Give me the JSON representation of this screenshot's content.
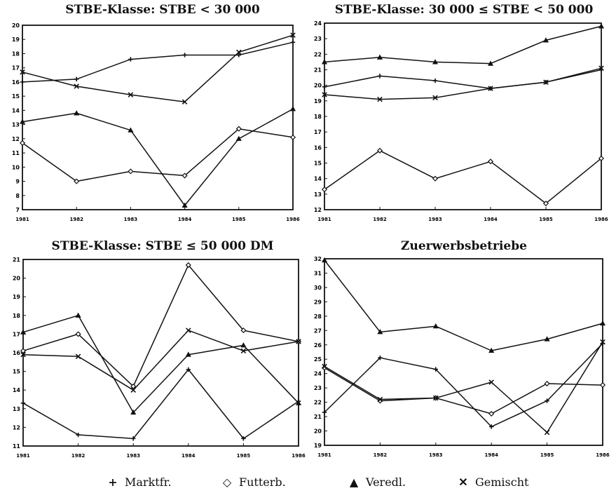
{
  "legend": {
    "marktfr": "Marktfr.",
    "futterb": "Futterb.",
    "veredl": "Veredl.",
    "gemischt": "Gemischt"
  },
  "chart_data": [
    {
      "type": "line",
      "title": "STBE-Klasse: STBE < 30 000",
      "x": [
        "1981",
        "1982",
        "1983",
        "1984",
        "1985",
        "1986"
      ],
      "ylim": [
        7,
        20
      ],
      "yticks": [
        7,
        8,
        9,
        10,
        11,
        12,
        13,
        14,
        15,
        16,
        17,
        18,
        19,
        20
      ],
      "series": [
        {
          "name": "Marktfr.",
          "values": [
            16.0,
            16.2,
            17.6,
            17.9,
            17.9,
            18.8
          ]
        },
        {
          "name": "Futterb.",
          "values": [
            11.7,
            9.0,
            9.7,
            9.4,
            12.7,
            12.1
          ]
        },
        {
          "name": "Veredl.",
          "values": [
            13.2,
            13.8,
            12.6,
            7.3,
            12.0,
            14.1
          ]
        },
        {
          "name": "Gemischt",
          "values": [
            16.7,
            15.7,
            15.1,
            14.6,
            18.1,
            19.3
          ]
        }
      ]
    },
    {
      "type": "line",
      "title": "STBE-Klasse: 30 000 ≤ STBE < 50 000",
      "x": [
        "1981",
        "1982",
        "1983",
        "1984",
        "1985",
        "1986"
      ],
      "ylim": [
        12,
        24
      ],
      "yticks": [
        12,
        13,
        14,
        15,
        16,
        17,
        18,
        19,
        20,
        21,
        22,
        23,
        24
      ],
      "series": [
        {
          "name": "Marktfr.",
          "values": [
            19.9,
            20.6,
            20.3,
            19.8,
            20.2,
            21.0
          ]
        },
        {
          "name": "Futterb.",
          "values": [
            13.3,
            15.8,
            14.0,
            15.1,
            12.4,
            15.3
          ]
        },
        {
          "name": "Veredl.",
          "values": [
            21.5,
            21.8,
            21.5,
            21.4,
            22.9,
            23.8
          ]
        },
        {
          "name": "Gemischt",
          "values": [
            19.4,
            19.1,
            19.2,
            19.8,
            20.2,
            21.1
          ]
        }
      ]
    },
    {
      "type": "line",
      "title": "STBE-Klasse: STBE ≤ 50 000 DM",
      "x": [
        "1981",
        "1982",
        "1983",
        "1984",
        "1985",
        "1986"
      ],
      "ylim": [
        11,
        21
      ],
      "yticks": [
        11,
        12,
        13,
        14,
        15,
        16,
        17,
        18,
        19,
        20,
        21
      ],
      "series": [
        {
          "name": "Marktfr.",
          "values": [
            13.3,
            11.6,
            11.4,
            15.1,
            11.4,
            13.4
          ]
        },
        {
          "name": "Futterb.",
          "values": [
            16.1,
            17.0,
            14.2,
            20.7,
            17.2,
            16.6
          ]
        },
        {
          "name": "Veredl.",
          "values": [
            17.1,
            18.0,
            12.8,
            15.9,
            16.4,
            13.3
          ]
        },
        {
          "name": "Gemischt",
          "values": [
            15.9,
            15.8,
            14.0,
            17.2,
            16.1,
            16.6
          ]
        }
      ]
    },
    {
      "type": "line",
      "title": "Zuerwerbsbetriebe",
      "x": [
        "1981",
        "1982",
        "1983",
        "1984",
        "1985",
        "1986"
      ],
      "ylim": [
        19,
        32
      ],
      "yticks": [
        19,
        20,
        21,
        22,
        23,
        24,
        25,
        26,
        27,
        28,
        29,
        30,
        31,
        32
      ],
      "series": [
        {
          "name": "Marktfr.",
          "values": [
            21.3,
            25.1,
            24.3,
            20.3,
            22.1,
            26.1
          ]
        },
        {
          "name": "Futterb.",
          "values": [
            24.4,
            22.1,
            22.3,
            21.2,
            23.3,
            23.2
          ]
        },
        {
          "name": "Veredl.",
          "values": [
            31.9,
            26.9,
            27.3,
            25.6,
            26.4,
            27.5
          ]
        },
        {
          "name": "Gemischt",
          "values": [
            24.5,
            22.2,
            22.3,
            23.4,
            19.9,
            26.2
          ]
        }
      ]
    }
  ]
}
